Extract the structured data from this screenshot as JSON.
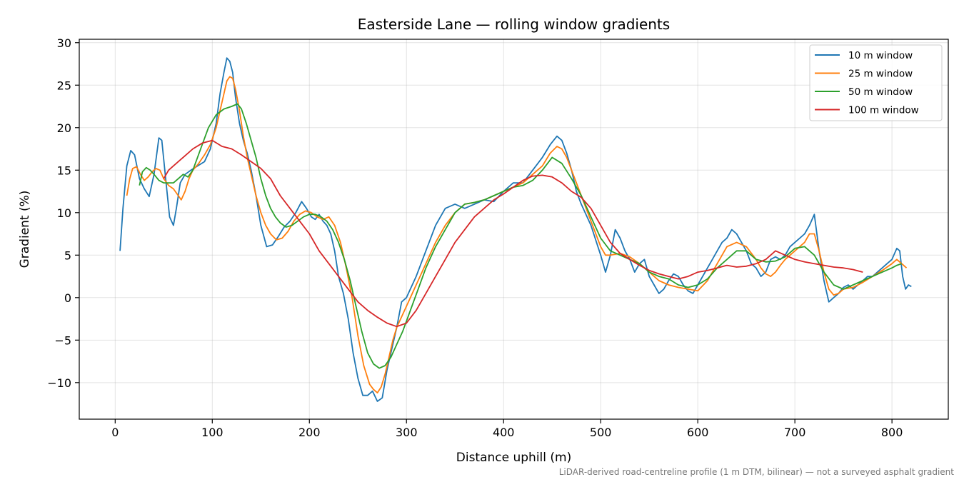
{
  "chart_data": {
    "type": "line",
    "title": "Easterside Lane — rolling window gradients",
    "xlabel": "Distance uphill (m)",
    "ylabel": "Gradient (%)",
    "xlim": [
      -37,
      858
    ],
    "ylim": [
      -14.3,
      30.4
    ],
    "xticks": [
      0,
      100,
      200,
      300,
      400,
      500,
      600,
      700,
      800
    ],
    "yticks": [
      -10,
      -5,
      0,
      5,
      10,
      15,
      20,
      25,
      30
    ],
    "xtick_labels": [
      "0",
      "100",
      "200",
      "300",
      "400",
      "500",
      "600",
      "700",
      "800"
    ],
    "ytick_labels": [
      "−10",
      "−5",
      "0",
      "5",
      "10",
      "15",
      "20",
      "25",
      "30"
    ],
    "grid": true,
    "legend_position": "top-right",
    "footnote": "LiDAR-derived road-centreline profile (1 m DTM, bilinear) — not a surveyed asphalt gradient",
    "series": [
      {
        "name": "10 m window",
        "color": "#1f77b4",
        "x": [
          5,
          8,
          12,
          16,
          20,
          25,
          30,
          35,
          40,
          45,
          48,
          52,
          56,
          60,
          63,
          67,
          72,
          78,
          85,
          92,
          98,
          104,
          108,
          112,
          115,
          118,
          121,
          124,
          128,
          132,
          136,
          140,
          145,
          150,
          156,
          162,
          168,
          174,
          180,
          186,
          192,
          197,
          202,
          206,
          210,
          214,
          218,
          222,
          226,
          230,
          235,
          240,
          245,
          250,
          255,
          260,
          265,
          270,
          275,
          280,
          285,
          290,
          295,
          300,
          310,
          320,
          330,
          340,
          350,
          360,
          370,
          380,
          390,
          400,
          410,
          420,
          430,
          440,
          448,
          455,
          460,
          465,
          470,
          475,
          480,
          490,
          500,
          505,
          510,
          515,
          520,
          525,
          530,
          535,
          540,
          545,
          550,
          555,
          560,
          565,
          570,
          575,
          580,
          585,
          590,
          595,
          600,
          605,
          610,
          615,
          620,
          625,
          630,
          635,
          640,
          645,
          650,
          655,
          660,
          665,
          670,
          675,
          680,
          685,
          690,
          695,
          700,
          705,
          710,
          715,
          720,
          725,
          730,
          735,
          740,
          745,
          750,
          755,
          760,
          765,
          770,
          775,
          780,
          785,
          790,
          795,
          800,
          805,
          808,
          811,
          814,
          817,
          820
        ],
        "y": [
          5.5,
          10.5,
          15.5,
          17.3,
          16.8,
          14.0,
          12.8,
          11.9,
          14.5,
          18.8,
          18.5,
          14.0,
          9.5,
          8.5,
          10.5,
          13.5,
          14.5,
          15.0,
          15.5,
          16.0,
          17.5,
          20.5,
          24.0,
          26.5,
          28.2,
          27.8,
          26.5,
          23.5,
          20.5,
          18.5,
          17.0,
          15.0,
          12.0,
          8.5,
          6.0,
          6.2,
          7.2,
          8.3,
          9.0,
          10.0,
          11.3,
          10.5,
          9.5,
          9.2,
          9.8,
          9.0,
          8.5,
          7.5,
          5.5,
          2.5,
          0.5,
          -2.5,
          -6.5,
          -9.5,
          -11.5,
          -11.5,
          -11.0,
          -12.2,
          -11.8,
          -8.5,
          -6.0,
          -3.5,
          -0.5,
          0.0,
          2.5,
          5.5,
          8.5,
          10.5,
          11.0,
          10.5,
          11.0,
          11.5,
          11.3,
          12.5,
          13.5,
          13.5,
          15.0,
          16.5,
          18.0,
          19.0,
          18.5,
          17.0,
          15.0,
          12.5,
          11.0,
          8.5,
          5.0,
          3.0,
          5.0,
          8.0,
          7.0,
          5.5,
          4.5,
          3.0,
          4.0,
          4.5,
          2.5,
          1.5,
          0.5,
          1.0,
          2.0,
          2.8,
          2.5,
          1.5,
          0.8,
          0.5,
          1.5,
          2.5,
          3.5,
          4.5,
          5.5,
          6.5,
          7.0,
          8.0,
          7.5,
          6.5,
          5.5,
          4.0,
          3.5,
          2.5,
          3.0,
          4.5,
          4.8,
          4.5,
          5.0,
          6.0,
          6.5,
          7.0,
          7.5,
          8.5,
          9.8,
          5.5,
          2.0,
          -0.5,
          0.0,
          0.5,
          1.2,
          1.5,
          1.0,
          1.5,
          2.0,
          2.5,
          2.5,
          3.0,
          3.5,
          4.0,
          4.5,
          5.8,
          5.5,
          2.5,
          1.0,
          1.5,
          1.3
        ]
      },
      {
        "name": "25 m window",
        "color": "#ff7f0e",
        "x": [
          12,
          15,
          18,
          22,
          26,
          30,
          34,
          38,
          42,
          46,
          50,
          55,
          60,
          65,
          68,
          72,
          76,
          80,
          86,
          92,
          98,
          104,
          110,
          115,
          118,
          121,
          124,
          128,
          132,
          136,
          140,
          145,
          150,
          155,
          160,
          166,
          172,
          178,
          184,
          190,
          196,
          202,
          208,
          214,
          220,
          226,
          232,
          238,
          244,
          250,
          256,
          262,
          266,
          270,
          274,
          278,
          282,
          286,
          290,
          296,
          302,
          310,
          320,
          330,
          340,
          350,
          360,
          370,
          380,
          390,
          400,
          410,
          420,
          430,
          440,
          448,
          455,
          460,
          465,
          470,
          475,
          480,
          485,
          490,
          495,
          500,
          505,
          510,
          520,
          530,
          540,
          550,
          560,
          570,
          580,
          590,
          600,
          610,
          620,
          630,
          640,
          650,
          660,
          665,
          670,
          675,
          680,
          685,
          690,
          700,
          710,
          715,
          720,
          725,
          730,
          735,
          740,
          745,
          750,
          760,
          770,
          780,
          790,
          800,
          805,
          810,
          815
        ],
        "y": [
          12.0,
          14.0,
          15.2,
          15.4,
          14.5,
          13.8,
          14.2,
          14.8,
          15.2,
          15.0,
          14.0,
          13.2,
          12.8,
          12.0,
          11.5,
          12.5,
          14.0,
          15.0,
          15.8,
          16.8,
          18.0,
          20.0,
          23.0,
          25.5,
          26.0,
          25.8,
          24.5,
          22.0,
          19.0,
          16.5,
          14.5,
          12.0,
          10.0,
          8.5,
          7.5,
          6.8,
          7.0,
          7.8,
          9.0,
          9.8,
          10.2,
          10.0,
          9.5,
          9.2,
          9.5,
          8.5,
          6.5,
          3.5,
          0.0,
          -4.5,
          -8.0,
          -10.2,
          -10.8,
          -11.2,
          -10.5,
          -9.0,
          -7.0,
          -5.0,
          -3.5,
          -2.0,
          -0.5,
          1.5,
          4.0,
          6.5,
          8.5,
          10.0,
          11.0,
          11.2,
          11.5,
          12.0,
          12.5,
          13.0,
          13.5,
          14.5,
          15.5,
          17.0,
          17.8,
          17.5,
          16.5,
          15.0,
          13.5,
          12.0,
          10.5,
          9.0,
          7.5,
          6.0,
          5.0,
          5.0,
          5.2,
          4.8,
          4.0,
          3.0,
          2.0,
          1.5,
          1.2,
          1.0,
          0.8,
          2.0,
          4.0,
          6.0,
          6.5,
          6.0,
          4.5,
          3.5,
          2.8,
          2.5,
          3.0,
          3.8,
          4.5,
          5.5,
          6.5,
          7.5,
          7.5,
          5.5,
          3.0,
          1.0,
          0.3,
          0.5,
          1.0,
          1.2,
          1.8,
          2.5,
          3.2,
          4.0,
          4.5,
          4.0,
          3.5
        ]
      },
      {
        "name": "50 m window",
        "color": "#2ca02c",
        "x": [
          25,
          28,
          32,
          36,
          40,
          45,
          50,
          55,
          60,
          65,
          70,
          75,
          80,
          88,
          96,
          104,
          112,
          120,
          126,
          130,
          135,
          140,
          145,
          150,
          155,
          160,
          165,
          170,
          176,
          182,
          188,
          194,
          200,
          206,
          212,
          218,
          224,
          230,
          236,
          242,
          248,
          254,
          260,
          266,
          272,
          278,
          284,
          290,
          296,
          304,
          312,
          320,
          330,
          340,
          350,
          360,
          370,
          380,
          390,
          400,
          410,
          420,
          430,
          440,
          450,
          460,
          470,
          480,
          490,
          500,
          510,
          520,
          530,
          540,
          550,
          560,
          570,
          580,
          590,
          600,
          610,
          620,
          630,
          640,
          650,
          660,
          670,
          680,
          690,
          700,
          710,
          720,
          730,
          740,
          750,
          760,
          770,
          780,
          790,
          800,
          805,
          810
        ],
        "y": [
          13.2,
          14.8,
          15.3,
          15.0,
          14.5,
          13.8,
          13.5,
          13.5,
          13.5,
          14.0,
          14.5,
          14.2,
          15.0,
          17.5,
          20.0,
          21.5,
          22.2,
          22.5,
          22.8,
          22.2,
          20.5,
          18.5,
          16.5,
          14.0,
          12.0,
          10.5,
          9.5,
          8.8,
          8.3,
          8.5,
          9.0,
          9.5,
          9.8,
          9.8,
          9.5,
          9.0,
          8.0,
          6.5,
          4.5,
          2.0,
          -1.0,
          -4.0,
          -6.5,
          -7.8,
          -8.3,
          -8.0,
          -7.0,
          -5.5,
          -4.0,
          -1.5,
          1.0,
          3.5,
          6.0,
          8.0,
          10.0,
          11.0,
          11.2,
          11.5,
          12.0,
          12.5,
          13.0,
          13.2,
          13.8,
          15.0,
          16.5,
          15.8,
          14.0,
          12.0,
          9.5,
          7.0,
          5.5,
          5.0,
          4.5,
          4.0,
          3.0,
          2.5,
          2.2,
          1.5,
          1.2,
          1.5,
          2.2,
          3.5,
          4.5,
          5.5,
          5.5,
          4.5,
          4.2,
          4.3,
          4.8,
          5.8,
          6.0,
          5.0,
          3.0,
          1.5,
          1.0,
          1.5,
          2.0,
          2.5,
          3.0,
          3.5,
          3.8,
          4.0
        ]
      },
      {
        "name": "100 m window",
        "color": "#d62728",
        "x": [
          50,
          55,
          60,
          70,
          80,
          90,
          100,
          110,
          120,
          130,
          140,
          150,
          160,
          170,
          180,
          190,
          200,
          210,
          220,
          230,
          240,
          250,
          260,
          270,
          280,
          290,
          300,
          310,
          320,
          330,
          340,
          350,
          360,
          370,
          380,
          390,
          400,
          410,
          420,
          430,
          440,
          450,
          460,
          470,
          480,
          490,
          500,
          510,
          520,
          530,
          540,
          550,
          560,
          570,
          580,
          590,
          600,
          610,
          620,
          630,
          640,
          650,
          660,
          670,
          680,
          690,
          700,
          710,
          720,
          730,
          740,
          750,
          760,
          770
        ],
        "y": [
          14.0,
          15.0,
          15.5,
          16.5,
          17.5,
          18.2,
          18.5,
          17.8,
          17.5,
          16.8,
          16.0,
          15.2,
          14.0,
          12.0,
          10.5,
          9.0,
          7.5,
          5.5,
          4.0,
          2.5,
          1.0,
          -0.5,
          -1.5,
          -2.3,
          -3.0,
          -3.4,
          -3.0,
          -1.5,
          0.5,
          2.5,
          4.5,
          6.5,
          8.0,
          9.5,
          10.5,
          11.5,
          12.2,
          13.0,
          13.8,
          14.3,
          14.4,
          14.2,
          13.5,
          12.5,
          11.8,
          10.5,
          8.5,
          6.5,
          5.2,
          4.5,
          3.8,
          3.2,
          2.8,
          2.5,
          2.2,
          2.5,
          3.0,
          3.2,
          3.5,
          3.8,
          3.6,
          3.7,
          4.0,
          4.5,
          5.5,
          5.0,
          4.5,
          4.2,
          4.0,
          3.8,
          3.6,
          3.5,
          3.3,
          3.0
        ]
      }
    ]
  }
}
